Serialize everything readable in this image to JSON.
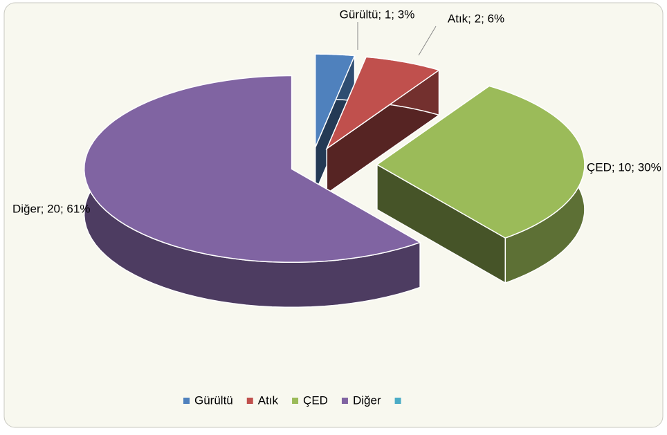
{
  "chart_data": {
    "type": "pie3d",
    "categories": [
      "Gürültü",
      "Atık",
      "ÇED",
      "Diğer",
      null
    ],
    "values": [
      1,
      2,
      10,
      20,
      null
    ],
    "value_labels": [
      "Gürültü; 1; 3%",
      "Atık; 2; 6%",
      "ÇED; 10; 30%",
      "Diğer; 20; 61%",
      null
    ],
    "colors": [
      "#4f81bd",
      "#c0504d",
      "#9bbb59",
      "#8064a2",
      "#4bacc6"
    ],
    "legend": "bottom"
  }
}
